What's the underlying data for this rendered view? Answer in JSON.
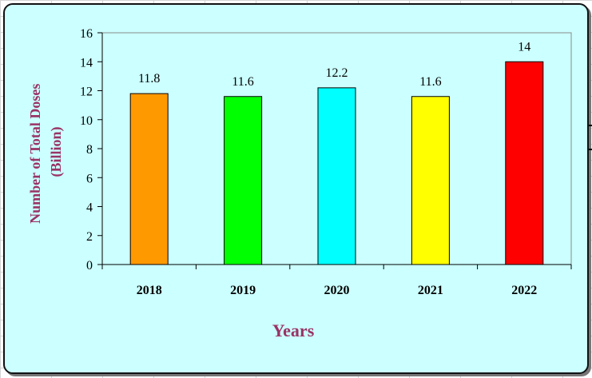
{
  "chart_data": {
    "type": "bar",
    "categories": [
      "2018",
      "2019",
      "2020",
      "2021",
      "2022"
    ],
    "values": [
      11.8,
      11.6,
      12.2,
      11.6,
      14
    ],
    "data_labels": [
      "11.8",
      "11.6",
      "12.2",
      "11.6",
      "14"
    ],
    "colors": [
      "#ff9900",
      "#00ff00",
      "#00ffff",
      "#ffff00",
      "#ff0000"
    ],
    "title": "",
    "xlabel": "Years",
    "ylabel_line1": "Number of Total Doses",
    "ylabel_line2": "(Billion)",
    "ylim": [
      0,
      16
    ],
    "yticks": [
      0,
      2,
      4,
      6,
      8,
      10,
      12,
      14,
      16
    ],
    "grid": false,
    "legend": "none",
    "plot_background": "#ccffff",
    "chart_background": "#ccffff"
  }
}
